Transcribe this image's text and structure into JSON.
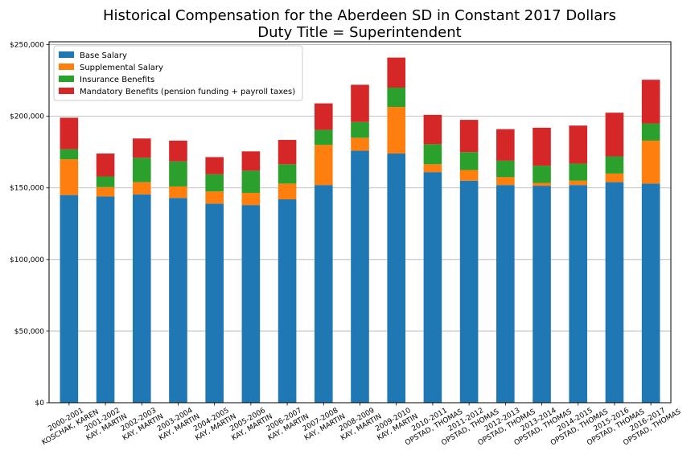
{
  "chart_data": {
    "type": "bar",
    "stacked": true,
    "title": [
      "Historical Compensation for the Aberdeen SD in Constant 2017 Dollars",
      "Duty Title = Superintendent"
    ],
    "categories": [
      [
        "2000-2001",
        "KOSCHAK, KAREN"
      ],
      [
        "2001-2002",
        "KAY, MARTIN"
      ],
      [
        "2002-2003",
        "KAY, MARTIN"
      ],
      [
        "2003-2004",
        "KAY, MARTIN"
      ],
      [
        "2004-2005",
        "KAY, MARTIN"
      ],
      [
        "2005-2006",
        "KAY, MARTIN"
      ],
      [
        "2006-2007",
        "KAY, MARTIN"
      ],
      [
        "2007-2008",
        "KAY, MARTIN"
      ],
      [
        "2008-2009",
        "KAY, MARTIN"
      ],
      [
        "2009-2010",
        "KAY, MARTIN"
      ],
      [
        "2010-2011",
        "OPSTAD, THOMAS"
      ],
      [
        "2011-2012",
        "OPSTAD, THOMAS"
      ],
      [
        "2012-2013",
        "OPSTAD, THOMAS"
      ],
      [
        "2013-2014",
        "OPSTAD, THOMAS"
      ],
      [
        "2014-2015",
        "OPSTAD, THOMAS"
      ],
      [
        "2015-2016",
        "OPSTAD, THOMAS"
      ],
      [
        "2016-2017",
        "OPSTAD, THOMAS"
      ]
    ],
    "series": [
      {
        "name": "Base Salary",
        "color": "#1f77b4",
        "values": [
          145000,
          144000,
          145500,
          143000,
          139000,
          138000,
          142000,
          152000,
          176000,
          174000,
          161000,
          155000,
          152000,
          151500,
          152000,
          154000,
          153000
        ]
      },
      {
        "name": "Supplemental Salary",
        "color": "#ff7f0e",
        "values": [
          25000,
          6500,
          8500,
          8000,
          8500,
          8500,
          11000,
          28000,
          9000,
          32500,
          5500,
          7500,
          5500,
          2000,
          3000,
          6000,
          30000
        ]
      },
      {
        "name": "Insurance Benefits",
        "color": "#2ca02c",
        "values": [
          7000,
          7500,
          17000,
          17500,
          12000,
          15500,
          13500,
          10500,
          11000,
          13500,
          14000,
          12500,
          11500,
          12000,
          12000,
          12000,
          12000
        ]
      },
      {
        "name": "Mandatory Benefits (pension funding + payroll taxes)",
        "color": "#d62728",
        "values": [
          22000,
          16000,
          13500,
          14500,
          12000,
          13500,
          17000,
          18500,
          26000,
          21000,
          20500,
          22500,
          22000,
          26500,
          26500,
          30500,
          30500
        ]
      }
    ],
    "ylim": [
      0,
      252000
    ],
    "yticks": [
      0,
      50000,
      100000,
      150000,
      200000,
      250000
    ],
    "ytick_labels": [
      "$0",
      "$50,000",
      "$100,000",
      "$150,000",
      "$200,000",
      "$250,000"
    ],
    "grid": "horizontal",
    "legend_position": "top-left",
    "xlabel": "",
    "ylabel": ""
  }
}
